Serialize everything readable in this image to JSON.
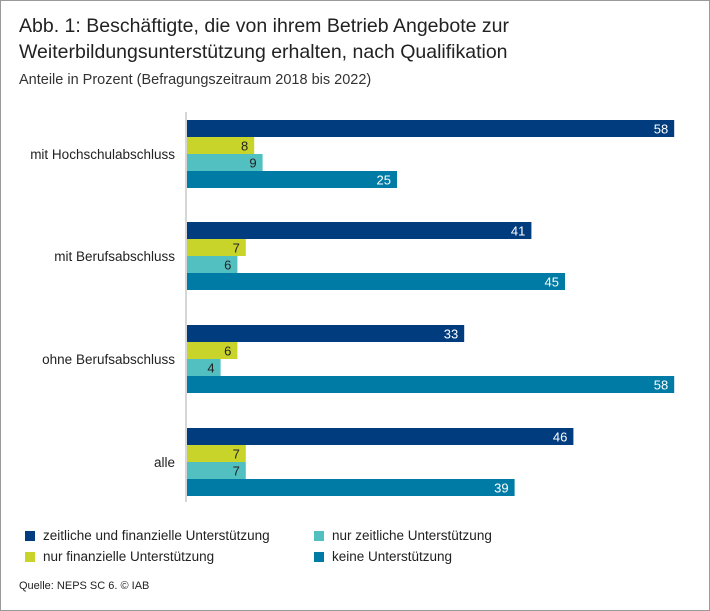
{
  "chart_data": {
    "type": "bar",
    "orientation": "horizontal",
    "title": "Abb. 1: Beschäftigte,  die von ihrem Betrieb Angebote zur Weiterbildungsunterstützung erhalten, nach Qualifikation",
    "title_line1": "Abb. 1: Beschäftigte,  die von ihrem Betrieb Angebote zur",
    "title_line2": "Weiterbildungsunterstützung erhalten, nach Qualifikation",
    "subtitle": "Anteile in Prozent (Befragungszeitraum 2018 bis 2022)",
    "categories": [
      "mit Hochschulabschluss",
      "mit Berufsabschluss",
      "ohne Berufsabschluss",
      "alle"
    ],
    "series": [
      {
        "name": "zeitliche und finanzielle Unterstützung",
        "color": "#003c7e",
        "values": [
          58,
          41,
          33,
          46
        ]
      },
      {
        "name": "nur finanzielle Unterstützung",
        "color": "#c8d42a",
        "values": [
          8,
          7,
          6,
          7
        ]
      },
      {
        "name": "nur zeitliche Unterstützung",
        "color": "#52bfc0",
        "values": [
          9,
          6,
          4,
          7
        ]
      },
      {
        "name": "keine Unterstützung",
        "color": "#007ba5",
        "values": [
          25,
          45,
          58,
          39
        ]
      }
    ],
    "xlim": [
      0,
      58
    ],
    "label_colors": [
      "#ffffff",
      "#222222",
      "#222222",
      "#ffffff"
    ],
    "source": "Quelle: NEPS SC 6.  © IAB"
  }
}
